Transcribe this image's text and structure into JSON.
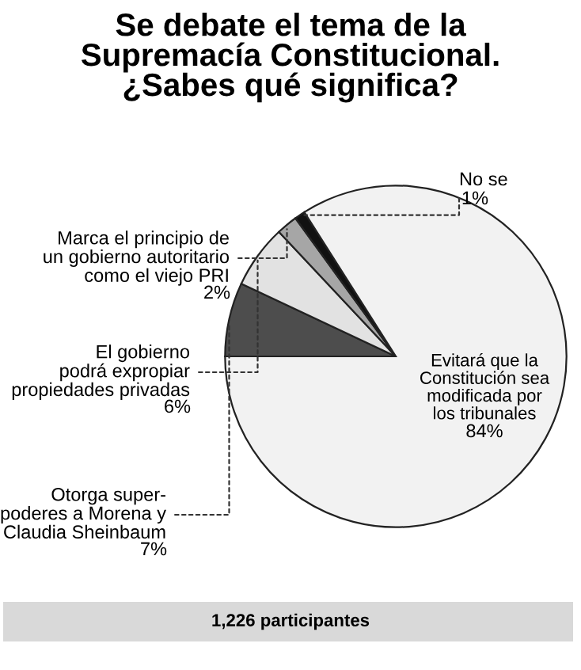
{
  "chart_data": {
    "type": "pie",
    "title": "Se debate el tema de la\nSupremacía Constitucional.\n¿Sabes qué significa?",
    "categories": [
      "Otorga super-\npoderes a Morena y\nClaudia Sheinbaum",
      "El gobierno\npodrá expropiar\npropiedades privadas",
      "Marca el principio de\nun gobierno autoritario\ncomo el viejo PRI",
      "No se",
      "Evitará que la\nConstitución sea\nmodificada por\nlos tribunales"
    ],
    "values": [
      7,
      6,
      2,
      1,
      84
    ],
    "colors": [
      "#4d4d4d",
      "#e2e2e2",
      "#a6a6a6",
      "#111111",
      "#f2f2f2"
    ],
    "annotations": [
      "1,226 participantes"
    ],
    "value_labels": [
      "7%",
      "6%",
      "2%",
      "1%",
      "84%"
    ]
  }
}
